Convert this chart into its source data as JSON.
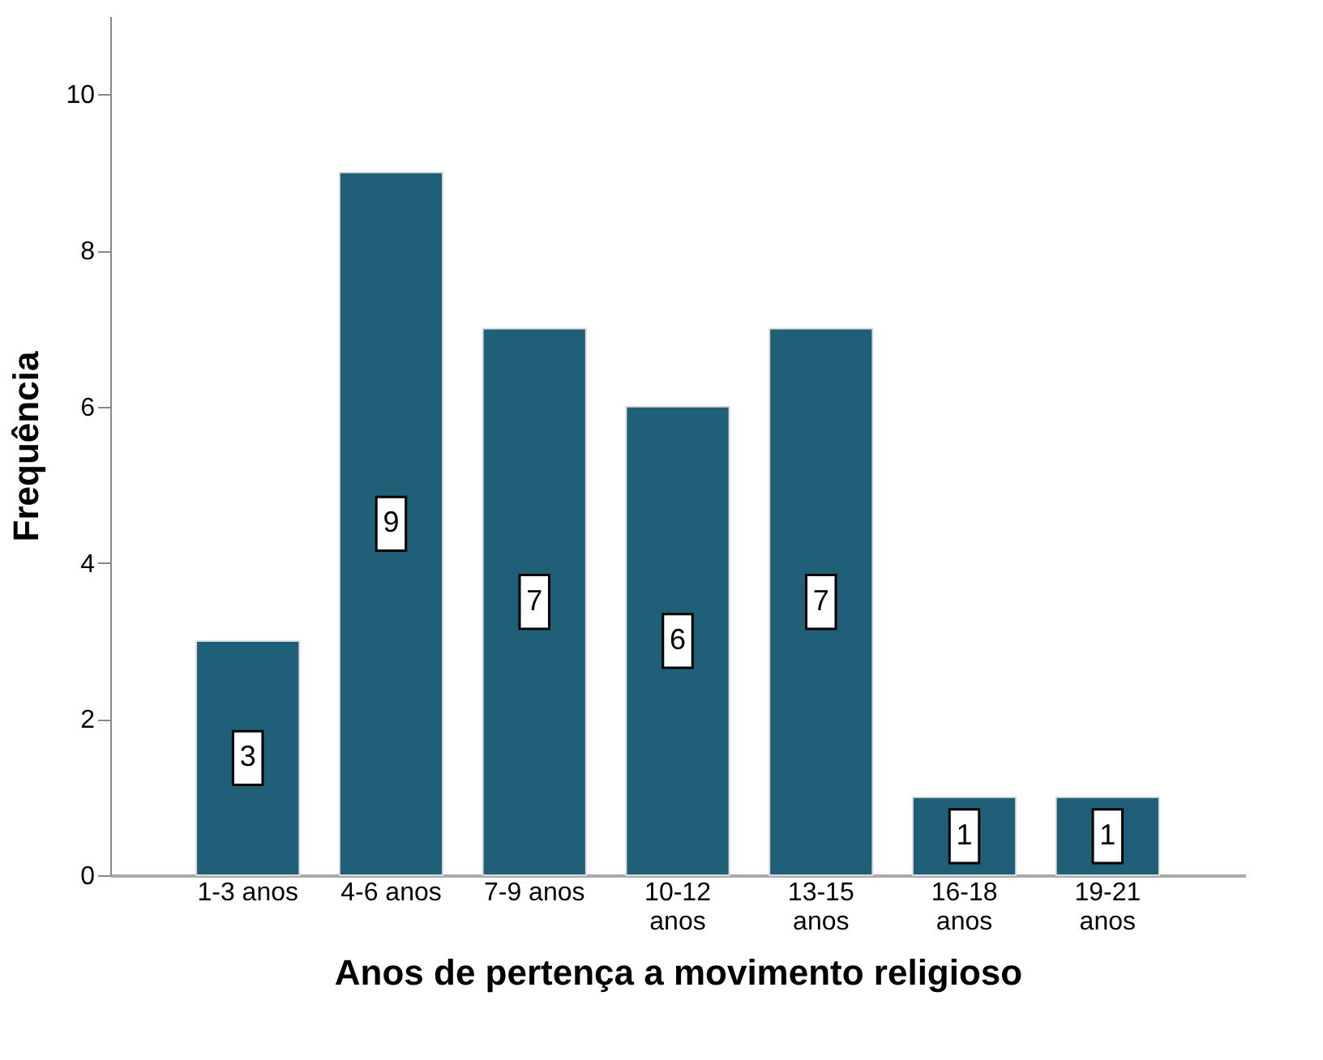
{
  "chart_data": {
    "type": "bar",
    "xlabel": "Anos de pertença a movimento religioso",
    "ylabel": "Frequência",
    "categories": [
      "1-3 anos",
      "4-6 anos",
      "7-9 anos",
      "10-12 anos",
      "13-15 anos",
      "16-18 anos",
      "19-21 anos"
    ],
    "values": [
      3,
      9,
      7,
      6,
      7,
      1,
      1
    ],
    "color": "#1f5f78",
    "ylim": [
      0,
      11
    ],
    "yticks": [
      0,
      2,
      4,
      6,
      8,
      10
    ],
    "grid": false,
    "data_labels": true
  }
}
